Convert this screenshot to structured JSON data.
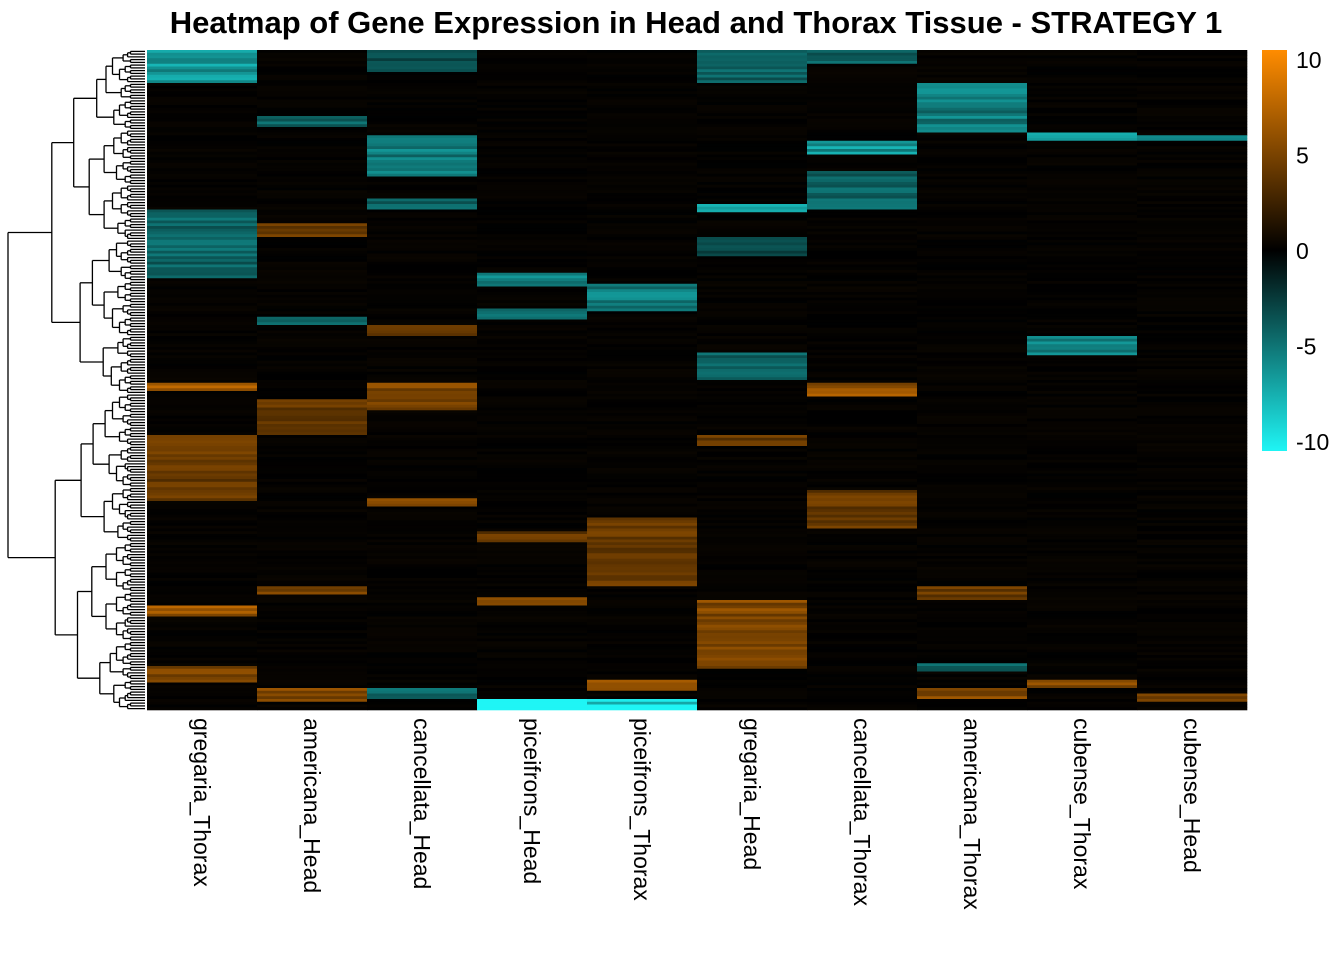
{
  "chart_data": {
    "type": "heatmap",
    "title": "Heatmap of Gene Expression in Head and Thorax Tissue - STRATEGY 1",
    "columns": [
      "gregaria_Thorax",
      "americana_Head",
      "cancellata_Head",
      "piceifrons_Head",
      "piceifrons_Thorax",
      "gregaria_Head",
      "cancellata_Thorax",
      "americana_Thorax",
      "cubense_Thorax",
      "cubense_Head"
    ],
    "color_scale": {
      "min": -10,
      "max": 10,
      "low_color": "#1ff5f5",
      "mid_color": "#000000",
      "high_color": "#ff8c00",
      "ticks": [
        10,
        5,
        0,
        -5,
        -10
      ],
      "tick_labels": [
        "10",
        "5",
        "0",
        "-5",
        "-10"
      ]
    },
    "row_dendrogram": true,
    "row_count": 240,
    "blocks": [
      {
        "col": 0,
        "from": 0.0,
        "to": 0.05,
        "value": -6
      },
      {
        "col": 0,
        "from": 0.245,
        "to": 0.345,
        "value": -4
      },
      {
        "col": 0,
        "from": 0.505,
        "to": 0.515,
        "value": 6
      },
      {
        "col": 0,
        "from": 0.585,
        "to": 0.68,
        "value": 4
      },
      {
        "col": 0,
        "from": 0.845,
        "to": 0.855,
        "value": 6
      },
      {
        "col": 0,
        "from": 0.935,
        "to": 0.955,
        "value": 5
      },
      {
        "col": 1,
        "from": 0.1,
        "to": 0.115,
        "value": -4
      },
      {
        "col": 1,
        "from": 0.265,
        "to": 0.28,
        "value": 4
      },
      {
        "col": 1,
        "from": 0.405,
        "to": 0.415,
        "value": -4
      },
      {
        "col": 1,
        "from": 0.53,
        "to": 0.58,
        "value": 4
      },
      {
        "col": 1,
        "from": 0.815,
        "to": 0.825,
        "value": 5
      },
      {
        "col": 1,
        "from": 0.97,
        "to": 0.985,
        "value": 5
      },
      {
        "col": 2,
        "from": 0.0,
        "to": 0.03,
        "value": -3
      },
      {
        "col": 2,
        "from": 0.13,
        "to": 0.19,
        "value": -5
      },
      {
        "col": 2,
        "from": 0.225,
        "to": 0.24,
        "value": -4
      },
      {
        "col": 2,
        "from": 0.42,
        "to": 0.43,
        "value": 4
      },
      {
        "col": 2,
        "from": 0.505,
        "to": 0.545,
        "value": 5
      },
      {
        "col": 2,
        "from": 0.68,
        "to": 0.69,
        "value": 5
      },
      {
        "col": 2,
        "from": 0.97,
        "to": 0.98,
        "value": -4
      },
      {
        "col": 3,
        "from": 0.34,
        "to": 0.355,
        "value": -5
      },
      {
        "col": 3,
        "from": 0.395,
        "to": 0.405,
        "value": -4
      },
      {
        "col": 3,
        "from": 0.73,
        "to": 0.745,
        "value": 4
      },
      {
        "col": 3,
        "from": 0.83,
        "to": 0.84,
        "value": 6
      },
      {
        "col": 3,
        "from": 0.985,
        "to": 1.0,
        "value": -9
      },
      {
        "col": 4,
        "from": 0.355,
        "to": 0.395,
        "value": -5
      },
      {
        "col": 4,
        "from": 0.71,
        "to": 0.81,
        "value": 4
      },
      {
        "col": 4,
        "from": 0.955,
        "to": 0.97,
        "value": 6
      },
      {
        "col": 4,
        "from": 0.985,
        "to": 1.0,
        "value": -9
      },
      {
        "col": 5,
        "from": 0.0,
        "to": 0.05,
        "value": -4
      },
      {
        "col": 5,
        "from": 0.235,
        "to": 0.245,
        "value": -6
      },
      {
        "col": 5,
        "from": 0.285,
        "to": 0.31,
        "value": -3
      },
      {
        "col": 5,
        "from": 0.46,
        "to": 0.5,
        "value": -4
      },
      {
        "col": 5,
        "from": 0.585,
        "to": 0.6,
        "value": 4
      },
      {
        "col": 5,
        "from": 0.835,
        "to": 0.935,
        "value": 5
      },
      {
        "col": 6,
        "from": 0.0,
        "to": 0.02,
        "value": -4
      },
      {
        "col": 6,
        "from": 0.14,
        "to": 0.155,
        "value": -6
      },
      {
        "col": 6,
        "from": 0.185,
        "to": 0.24,
        "value": -4
      },
      {
        "col": 6,
        "from": 0.505,
        "to": 0.525,
        "value": 6
      },
      {
        "col": 6,
        "from": 0.67,
        "to": 0.725,
        "value": 4
      },
      {
        "col": 7,
        "from": 0.05,
        "to": 0.125,
        "value": -5
      },
      {
        "col": 7,
        "from": 0.815,
        "to": 0.83,
        "value": 4
      },
      {
        "col": 7,
        "from": 0.93,
        "to": 0.94,
        "value": -4
      },
      {
        "col": 7,
        "from": 0.97,
        "to": 0.98,
        "value": 5
      },
      {
        "col": 8,
        "from": 0.125,
        "to": 0.135,
        "value": -6
      },
      {
        "col": 8,
        "from": 0.435,
        "to": 0.46,
        "value": -5
      },
      {
        "col": 8,
        "from": 0.955,
        "to": 0.965,
        "value": 5
      },
      {
        "col": 9,
        "from": 0.13,
        "to": 0.135,
        "value": -5
      },
      {
        "col": 9,
        "from": 0.975,
        "to": 0.985,
        "value": 5
      }
    ]
  }
}
